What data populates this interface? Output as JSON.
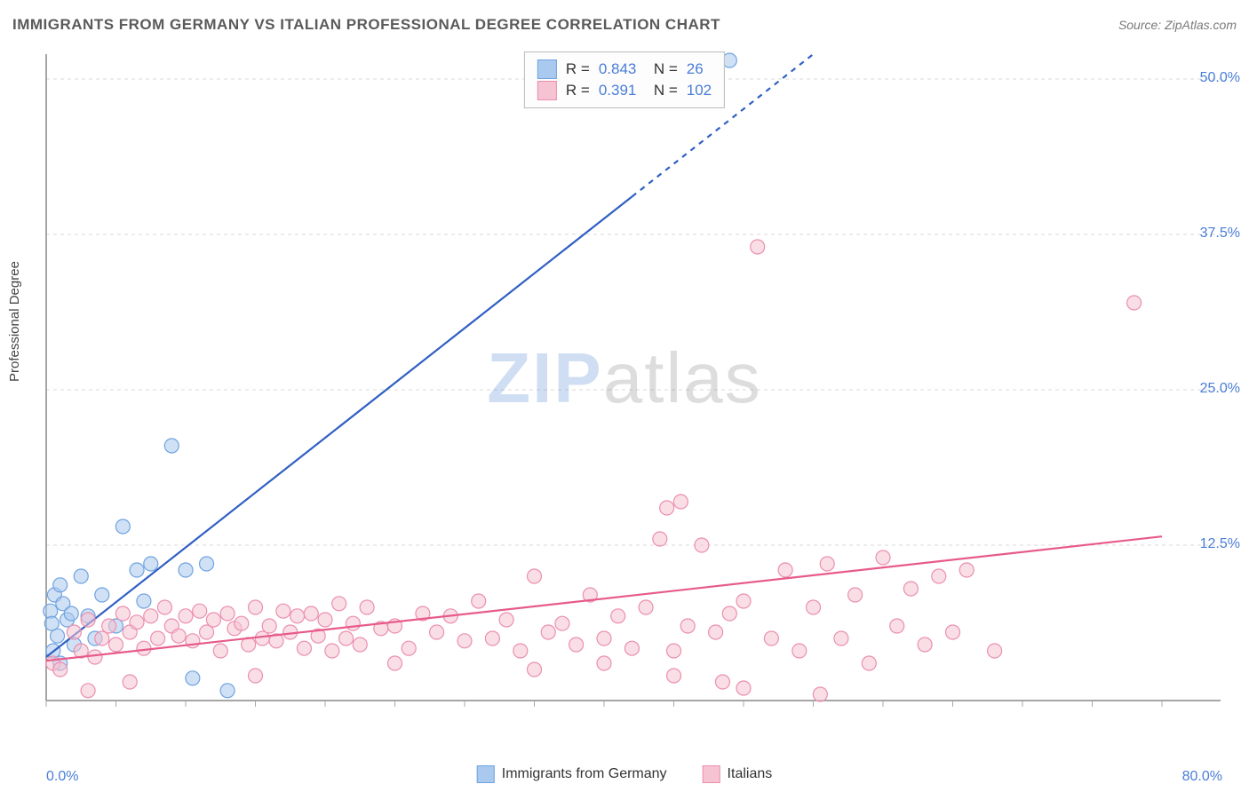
{
  "title": "IMMIGRANTS FROM GERMANY VS ITALIAN PROFESSIONAL DEGREE CORRELATION CHART",
  "source": "Source: ZipAtlas.com",
  "ylabel": "Professional Degree",
  "watermark": {
    "part1": "ZIP",
    "part2": "atlas"
  },
  "chart": {
    "type": "scatter",
    "background_color": "#ffffff",
    "grid_color": "#d8d8d8",
    "axis_color": "#888888",
    "tick_color": "#aaaaaa",
    "label_color": "#4a7dd6",
    "xlim": [
      0,
      80
    ],
    "ylim": [
      0,
      52
    ],
    "yticks": [
      {
        "v": 12.5,
        "label": "12.5%"
      },
      {
        "v": 25.0,
        "label": "25.0%"
      },
      {
        "v": 37.5,
        "label": "37.5%"
      },
      {
        "v": 50.0,
        "label": "50.0%"
      }
    ],
    "xtick_step": 5,
    "x_left_label": "0.0%",
    "x_right_label": "80.0%",
    "marker_radius": 8,
    "marker_opacity": 0.55,
    "series": [
      {
        "id": "germany",
        "label": "Immigrants from Germany",
        "color_fill": "#a9c9ef",
        "color_stroke": "#6fa3e0",
        "line_color": "#2f5fc4",
        "trend": {
          "x1": 0,
          "y1": 3.5,
          "x2": 55,
          "y2": 52,
          "dash_after_x": 42
        },
        "R": "0.843",
        "N": "26",
        "points": [
          [
            0.3,
            7.2
          ],
          [
            0.5,
            4.0
          ],
          [
            0.6,
            8.5
          ],
          [
            0.8,
            5.2
          ],
          [
            1.0,
            9.3
          ],
          [
            1.0,
            3.0
          ],
          [
            1.2,
            7.8
          ],
          [
            1.5,
            6.5
          ],
          [
            2.0,
            4.5
          ],
          [
            2.5,
            10.0
          ],
          [
            3.0,
            6.8
          ],
          [
            3.5,
            5.0
          ],
          [
            4.0,
            8.5
          ],
          [
            5.0,
            6.0
          ],
          [
            5.5,
            14.0
          ],
          [
            6.5,
            10.5
          ],
          [
            7.0,
            8.0
          ],
          [
            7.5,
            11.0
          ],
          [
            9.0,
            20.5
          ],
          [
            10.0,
            10.5
          ],
          [
            10.5,
            1.8
          ],
          [
            11.5,
            11.0
          ],
          [
            13.0,
            0.8
          ],
          [
            0.4,
            6.2
          ],
          [
            1.8,
            7.0
          ],
          [
            49.0,
            51.5
          ]
        ]
      },
      {
        "id": "italians",
        "label": "Italians",
        "color_fill": "#f6c3d2",
        "color_stroke": "#ea8fb0",
        "line_color": "#e75a8a",
        "trend": {
          "x1": 0,
          "y1": 3.2,
          "x2": 80,
          "y2": 13.2,
          "dash_after_x": 80
        },
        "R": "0.391",
        "N": "102",
        "points": [
          [
            0.5,
            3.0
          ],
          [
            1.0,
            2.5
          ],
          [
            2.0,
            5.5
          ],
          [
            2.5,
            4.0
          ],
          [
            3.0,
            6.5
          ],
          [
            3.5,
            3.5
          ],
          [
            4.0,
            5.0
          ],
          [
            4.5,
            6.0
          ],
          [
            5.0,
            4.5
          ],
          [
            5.5,
            7.0
          ],
          [
            6.0,
            5.5
          ],
          [
            6.5,
            6.3
          ],
          [
            7.0,
            4.2
          ],
          [
            7.5,
            6.8
          ],
          [
            8.0,
            5.0
          ],
          [
            8.5,
            7.5
          ],
          [
            9.0,
            6.0
          ],
          [
            9.5,
            5.2
          ],
          [
            10.0,
            6.8
          ],
          [
            10.5,
            4.8
          ],
          [
            11.0,
            7.2
          ],
          [
            11.5,
            5.5
          ],
          [
            12.0,
            6.5
          ],
          [
            12.5,
            4.0
          ],
          [
            13.0,
            7.0
          ],
          [
            13.5,
            5.8
          ],
          [
            14.0,
            6.2
          ],
          [
            14.5,
            4.5
          ],
          [
            15.0,
            7.5
          ],
          [
            15.5,
            5.0
          ],
          [
            16.0,
            6.0
          ],
          [
            16.5,
            4.8
          ],
          [
            17.0,
            7.2
          ],
          [
            17.5,
            5.5
          ],
          [
            18.0,
            6.8
          ],
          [
            18.5,
            4.2
          ],
          [
            19.0,
            7.0
          ],
          [
            19.5,
            5.2
          ],
          [
            20.0,
            6.5
          ],
          [
            20.5,
            4.0
          ],
          [
            21.0,
            7.8
          ],
          [
            21.5,
            5.0
          ],
          [
            22.0,
            6.2
          ],
          [
            22.5,
            4.5
          ],
          [
            23.0,
            7.5
          ],
          [
            24.0,
            5.8
          ],
          [
            25.0,
            6.0
          ],
          [
            26.0,
            4.2
          ],
          [
            27.0,
            7.0
          ],
          [
            28.0,
            5.5
          ],
          [
            29.0,
            6.8
          ],
          [
            30.0,
            4.8
          ],
          [
            31.0,
            8.0
          ],
          [
            32.0,
            5.0
          ],
          [
            33.0,
            6.5
          ],
          [
            34.0,
            4.0
          ],
          [
            35.0,
            10.0
          ],
          [
            36.0,
            5.5
          ],
          [
            37.0,
            6.2
          ],
          [
            38.0,
            4.5
          ],
          [
            39.0,
            8.5
          ],
          [
            40.0,
            5.0
          ],
          [
            41.0,
            6.8
          ],
          [
            42.0,
            4.2
          ],
          [
            43.0,
            7.5
          ],
          [
            44.0,
            13.0
          ],
          [
            44.5,
            15.5
          ],
          [
            45.0,
            4.0
          ],
          [
            45.5,
            16.0
          ],
          [
            46.0,
            6.0
          ],
          [
            47.0,
            12.5
          ],
          [
            48.0,
            5.5
          ],
          [
            48.5,
            1.5
          ],
          [
            49.0,
            7.0
          ],
          [
            50.0,
            8.0
          ],
          [
            51.0,
            36.5
          ],
          [
            52.0,
            5.0
          ],
          [
            53.0,
            10.5
          ],
          [
            54.0,
            4.0
          ],
          [
            55.0,
            7.5
          ],
          [
            55.5,
            0.5
          ],
          [
            56.0,
            11.0
          ],
          [
            57.0,
            5.0
          ],
          [
            58.0,
            8.5
          ],
          [
            59.0,
            3.0
          ],
          [
            60.0,
            11.5
          ],
          [
            61.0,
            6.0
          ],
          [
            62.0,
            9.0
          ],
          [
            63.0,
            4.5
          ],
          [
            64.0,
            10.0
          ],
          [
            65.0,
            5.5
          ],
          [
            66.0,
            10.5
          ],
          [
            68.0,
            4.0
          ],
          [
            78.0,
            32.0
          ],
          [
            3.0,
            0.8
          ],
          [
            6.0,
            1.5
          ],
          [
            15.0,
            2.0
          ],
          [
            25.0,
            3.0
          ],
          [
            35.0,
            2.5
          ],
          [
            45.0,
            2.0
          ],
          [
            50.0,
            1.0
          ],
          [
            40.0,
            3.0
          ]
        ]
      }
    ]
  },
  "bottom_legend": [
    {
      "label": "Immigrants from Germany",
      "fill": "#a9c9ef",
      "stroke": "#6fa3e0"
    },
    {
      "label": "Italians",
      "fill": "#f6c3d2",
      "stroke": "#ea8fb0"
    }
  ]
}
